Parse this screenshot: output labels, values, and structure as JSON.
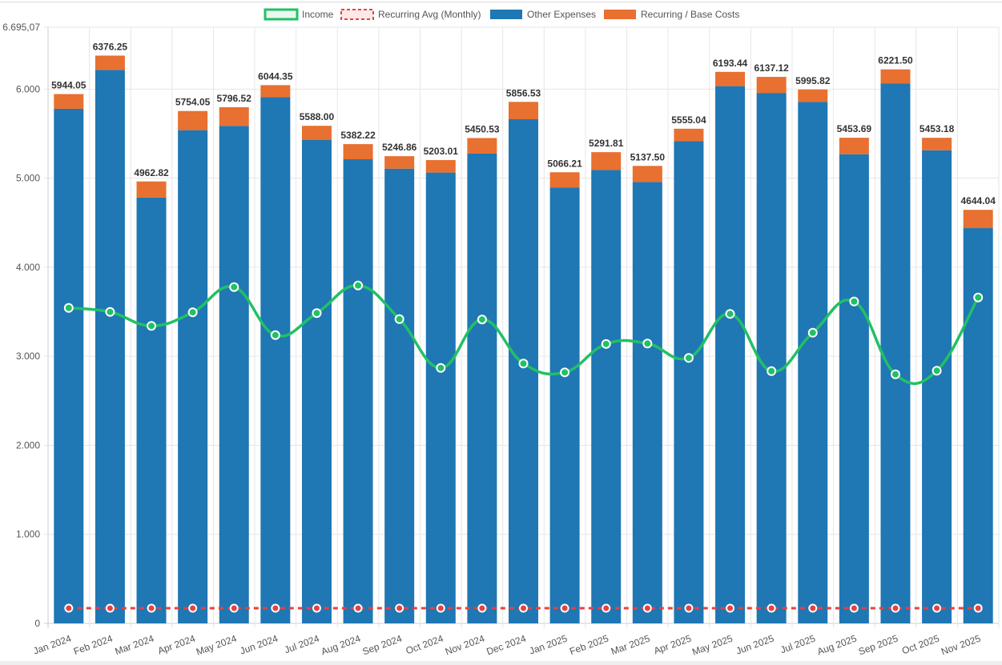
{
  "chart_data": {
    "type": "bar",
    "stacked": true,
    "title": "",
    "xlabel": "",
    "ylabel": "",
    "ylim": [
      0,
      6695.07
    ],
    "y_max_label": "6.695,07",
    "y_ticks": [
      {
        "value": 0,
        "label": "0"
      },
      {
        "value": 1000,
        "label": "1.000"
      },
      {
        "value": 2000,
        "label": "2.000"
      },
      {
        "value": 3000,
        "label": "3.000"
      },
      {
        "value": 4000,
        "label": "4.000"
      },
      {
        "value": 5000,
        "label": "5.000"
      },
      {
        "value": 6000,
        "label": "6.000"
      }
    ],
    "grid": true,
    "legend_position": "top-center",
    "categories": [
      "Jan 2024",
      "Feb 2024",
      "Mar 2024",
      "Apr 2024",
      "May 2024",
      "Jun 2024",
      "Jul 2024",
      "Aug 2024",
      "Sep 2024",
      "Oct 2024",
      "Nov 2024",
      "Dec 2024",
      "Jan 2025",
      "Feb 2025",
      "Mar 2025",
      "Apr 2025",
      "May 2025",
      "Jun 2025",
      "Jul 2025",
      "Aug 2025",
      "Sep 2025",
      "Oct 2025",
      "Nov 2025"
    ],
    "series": [
      {
        "name": "Income",
        "type": "line",
        "color": "#22c065",
        "values": [
          3543,
          3498,
          3341,
          3494,
          3777,
          3237,
          3485,
          3795,
          3417,
          2869,
          3413,
          2918,
          2819,
          3138,
          3143,
          2981,
          3476,
          2833,
          3264,
          3615,
          2797,
          2837,
          3660
        ]
      },
      {
        "name": "Recurring Avg (Monthly)",
        "type": "line",
        "dashed": true,
        "color": "#e84040",
        "values": [
          171,
          171,
          171,
          171,
          171,
          171,
          171,
          171,
          171,
          171,
          171,
          171,
          171,
          171,
          171,
          171,
          171,
          171,
          171,
          171,
          171,
          171,
          171
        ]
      },
      {
        "name": "Other Expenses",
        "type": "bar",
        "color": "#1f77b4",
        "values": [
          5779.05,
          6216.25,
          4782.82,
          5539.05,
          5586.52,
          5909.35,
          5428.0,
          5212.22,
          5106.86,
          5063.01,
          5275.53,
          5661.53,
          4896.21,
          5091.81,
          4957.5,
          5415.04,
          6033.44,
          5957.12,
          5855.82,
          5268.69,
          6061.5,
          5313.18,
          4439.04
        ]
      },
      {
        "name": "Recurring / Base Costs",
        "type": "bar",
        "color": "#e87030",
        "values": [
          165,
          160,
          180,
          215,
          210,
          135,
          160,
          170,
          140,
          140,
          175,
          195,
          170,
          200,
          180,
          140,
          160,
          180,
          140,
          185,
          160,
          140,
          205
        ]
      }
    ],
    "totals": [
      5944.05,
      6376.25,
      4962.82,
      5754.05,
      5796.52,
      6044.35,
      5588.0,
      5382.22,
      5246.86,
      5203.01,
      5450.53,
      5856.53,
      5066.21,
      5291.81,
      5137.5,
      5555.04,
      6193.44,
      6137.12,
      5995.82,
      5453.69,
      6221.5,
      5453.18,
      4644.04
    ],
    "total_labels": [
      "5944.05",
      "6376.25",
      "4962.82",
      "5754.05",
      "5796.52",
      "6044.35",
      "5588.00",
      "5382.22",
      "5246.86",
      "5203.01",
      "5450.53",
      "5856.53",
      "5066.21",
      "5291.81",
      "5137.50",
      "5555.04",
      "6193.44",
      "6137.12",
      "5995.82",
      "5453.69",
      "6221.50",
      "5453.18",
      "4644.04"
    ]
  }
}
